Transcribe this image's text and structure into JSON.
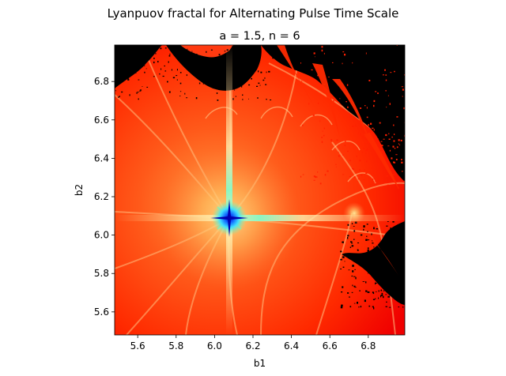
{
  "chart_data": {
    "type": "heatmap",
    "suptitle": "Lyanpuov fractal for Alternating Pulse Time Scale",
    "title": "a = 1.5, n = 6",
    "xlabel": "b1",
    "ylabel": "b2",
    "xlim": [
      5.48,
      6.99
    ],
    "ylim": [
      5.48,
      6.99
    ],
    "xticks": [
      5.6,
      5.8,
      6.0,
      6.2,
      6.4,
      6.6,
      6.8
    ],
    "yticks": [
      5.6,
      5.8,
      6.0,
      6.2,
      6.4,
      6.6,
      6.8
    ],
    "xtick_labels": [
      "5.6",
      "5.8",
      "6.0",
      "6.2",
      "6.4",
      "6.6",
      "6.8"
    ],
    "ytick_labels": [
      "5.6",
      "5.8",
      "6.0",
      "6.2",
      "6.4",
      "6.6",
      "6.8"
    ],
    "colormap": "jet",
    "colors": {
      "background": "#ff0000",
      "chaotic": "#000000",
      "center": "#0000aa",
      "glow": "#66ffa0"
    },
    "features": {
      "center_point": [
        6.09,
        6.09
      ],
      "secondary_point": [
        6.72,
        6.1
      ]
    },
    "grid": false
  }
}
